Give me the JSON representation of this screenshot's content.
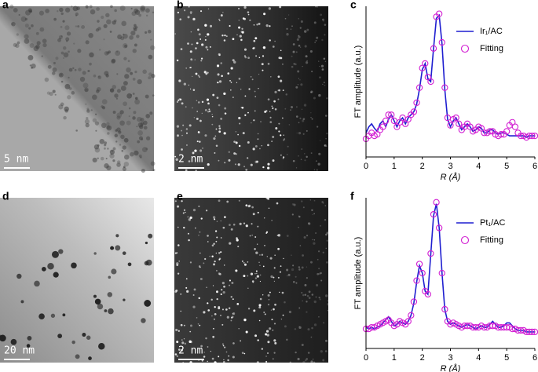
{
  "images": [
    {
      "label": "a",
      "scale_bar": "5 nm"
    },
    {
      "label": "b",
      "scale_bar": "2 nm"
    },
    {
      "label": "d",
      "scale_bar": "20 nm"
    },
    {
      "label": "e",
      "scale_bar": "2 nm"
    }
  ],
  "chart_data": [
    {
      "type": "line",
      "panel_label": "c",
      "y_label": "FT amplitude (a.u.)",
      "x_label": "R (Å)",
      "xlim": [
        0,
        6
      ],
      "xticks": [
        0,
        1,
        2,
        3,
        4,
        5,
        6
      ],
      "ylim": [
        0,
        1
      ],
      "legend": "upper right",
      "x": [
        0,
        0.1,
        0.2,
        0.3,
        0.4,
        0.5,
        0.6,
        0.7,
        0.8,
        0.9,
        1,
        1.1,
        1.2,
        1.3,
        1.4,
        1.5,
        1.6,
        1.7,
        1.8,
        1.9,
        2,
        2.1,
        2.2,
        2.3,
        2.4,
        2.5,
        2.6,
        2.7,
        2.8,
        2.9,
        3,
        3.1,
        3.2,
        3.3,
        3.4,
        3.5,
        3.6,
        3.7,
        3.8,
        3.9,
        4,
        4.1,
        4.2,
        4.3,
        4.4,
        4.5,
        4.6,
        4.7,
        4.8,
        4.9,
        5,
        5.1,
        5.2,
        5.3,
        5.4,
        5.5,
        5.6,
        5.7,
        5.8,
        5.9,
        6
      ],
      "series": [
        {
          "name": "Ir₁/AC",
          "color": "#1f1fd0",
          "style": "line",
          "values": [
            0.16,
            0.2,
            0.22,
            0.19,
            0.17,
            0.22,
            0.24,
            0.2,
            0.25,
            0.28,
            0.24,
            0.2,
            0.24,
            0.26,
            0.22,
            0.26,
            0.28,
            0.3,
            0.35,
            0.45,
            0.58,
            0.62,
            0.52,
            0.5,
            0.72,
            0.92,
            0.94,
            0.75,
            0.45,
            0.25,
            0.2,
            0.24,
            0.26,
            0.22,
            0.18,
            0.2,
            0.22,
            0.2,
            0.17,
            0.18,
            0.2,
            0.19,
            0.16,
            0.16,
            0.18,
            0.18,
            0.16,
            0.15,
            0.16,
            0.16,
            0.15,
            0.14,
            0.14,
            0.14,
            0.14,
            0.14,
            0.14,
            0.13,
            0.14,
            0.14,
            0.14
          ]
        },
        {
          "name": "Fitting",
          "color": "#d21fd2",
          "style": "circles",
          "values": [
            0.12,
            0.14,
            0.16,
            0.14,
            0.15,
            0.18,
            0.2,
            0.24,
            0.28,
            0.28,
            0.24,
            0.2,
            0.23,
            0.26,
            0.22,
            0.25,
            0.28,
            0.3,
            0.36,
            0.46,
            0.59,
            0.62,
            0.53,
            0.5,
            0.72,
            0.93,
            0.95,
            0.76,
            0.46,
            0.26,
            0.21,
            0.25,
            0.26,
            0.22,
            0.18,
            0.2,
            0.22,
            0.2,
            0.17,
            0.18,
            0.2,
            0.19,
            0.16,
            0.16,
            0.17,
            0.17,
            0.15,
            0.14,
            0.15,
            0.15,
            0.17,
            0.21,
            0.23,
            0.2,
            0.16,
            0.14,
            0.14,
            0.13,
            0.14,
            0.14,
            0.14
          ]
        }
      ]
    },
    {
      "type": "line",
      "panel_label": "f",
      "y_label": "FT amplitude (a.u.)",
      "x_label": "R (Å)",
      "xlim": [
        0,
        6
      ],
      "xticks": [
        0,
        1,
        2,
        3,
        4,
        5,
        6
      ],
      "ylim": [
        0,
        1
      ],
      "legend": "upper right",
      "x": [
        0,
        0.1,
        0.2,
        0.3,
        0.4,
        0.5,
        0.6,
        0.7,
        0.8,
        0.9,
        1,
        1.1,
        1.2,
        1.3,
        1.4,
        1.5,
        1.6,
        1.7,
        1.8,
        1.9,
        2,
        2.1,
        2.2,
        2.3,
        2.4,
        2.5,
        2.6,
        2.7,
        2.8,
        2.9,
        3,
        3.1,
        3.2,
        3.3,
        3.4,
        3.5,
        3.6,
        3.7,
        3.8,
        3.9,
        4,
        4.1,
        4.2,
        4.3,
        4.4,
        4.5,
        4.6,
        4.7,
        4.8,
        4.9,
        5,
        5.1,
        5.2,
        5.3,
        5.4,
        5.5,
        5.6,
        5.7,
        5.8,
        5.9,
        6
      ],
      "series": [
        {
          "name": "Pt₁/AC",
          "color": "#1f1fd0",
          "style": "line",
          "values": [
            0.14,
            0.13,
            0.14,
            0.13,
            0.14,
            0.15,
            0.17,
            0.19,
            0.21,
            0.18,
            0.15,
            0.16,
            0.18,
            0.17,
            0.16,
            0.18,
            0.22,
            0.3,
            0.44,
            0.55,
            0.5,
            0.38,
            0.36,
            0.62,
            0.88,
            0.96,
            0.8,
            0.5,
            0.26,
            0.18,
            0.16,
            0.17,
            0.16,
            0.15,
            0.14,
            0.15,
            0.16,
            0.15,
            0.14,
            0.13,
            0.14,
            0.15,
            0.14,
            0.14,
            0.16,
            0.18,
            0.16,
            0.14,
            0.14,
            0.15,
            0.17,
            0.17,
            0.15,
            0.13,
            0.12,
            0.12,
            0.12,
            0.11,
            0.11,
            0.11,
            0.11
          ]
        },
        {
          "name": "Fitting",
          "color": "#d21fd2",
          "style": "circles",
          "values": [
            0.13,
            0.13,
            0.14,
            0.14,
            0.15,
            0.16,
            0.17,
            0.18,
            0.19,
            0.17,
            0.15,
            0.16,
            0.18,
            0.17,
            0.16,
            0.18,
            0.22,
            0.31,
            0.45,
            0.56,
            0.5,
            0.38,
            0.36,
            0.63,
            0.89,
            0.97,
            0.8,
            0.5,
            0.26,
            0.18,
            0.16,
            0.17,
            0.16,
            0.15,
            0.14,
            0.15,
            0.15,
            0.15,
            0.14,
            0.14,
            0.14,
            0.15,
            0.14,
            0.14,
            0.15,
            0.15,
            0.15,
            0.14,
            0.14,
            0.14,
            0.14,
            0.14,
            0.13,
            0.13,
            0.12,
            0.12,
            0.12,
            0.11,
            0.11,
            0.11,
            0.11
          ]
        }
      ]
    }
  ]
}
